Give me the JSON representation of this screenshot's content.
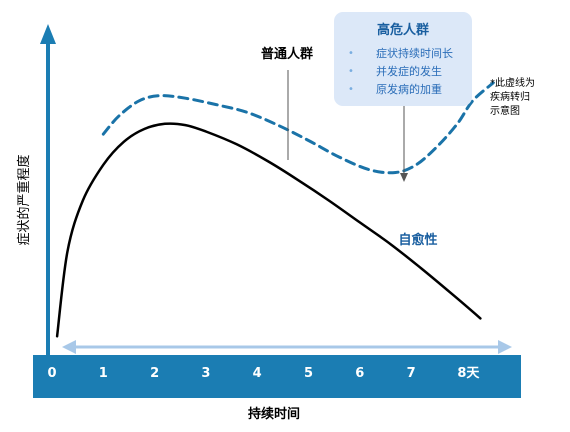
{
  "chart_data": {
    "type": "line",
    "ylabel": "症状的严重程度",
    "xlabel": "持续时间",
    "x_ticks": [
      "0",
      "1",
      "2",
      "3",
      "4",
      "5",
      "6",
      "7",
      "8天"
    ],
    "xlim": [
      0,
      8.6
    ],
    "ylim": [
      0,
      10
    ],
    "series": [
      {
        "name": "普通人群",
        "style": "solid",
        "color": "#000000",
        "x": [
          0.1,
          0.3,
          0.6,
          1.0,
          1.4,
          1.8,
          2.2,
          2.6,
          3.0,
          3.6,
          4.2,
          4.8,
          5.4,
          6.0,
          6.6,
          7.2,
          7.8,
          8.35
        ],
        "y": [
          0.3,
          3.6,
          5.6,
          7.0,
          7.9,
          8.4,
          8.6,
          8.55,
          8.3,
          7.8,
          7.15,
          6.4,
          5.6,
          4.75,
          3.9,
          2.95,
          1.95,
          1.0
        ]
      },
      {
        "name": "疾病转归示意图",
        "style": "dashed",
        "color": "#1a73a8",
        "x": [
          1.0,
          1.3,
          1.7,
          2.1,
          2.6,
          3.2,
          3.8,
          4.4,
          5.0,
          5.6,
          6.2,
          6.7,
          7.1,
          7.5,
          7.9,
          8.2,
          8.6
        ],
        "y": [
          8.2,
          8.9,
          9.5,
          9.7,
          9.6,
          9.35,
          9.05,
          8.55,
          7.95,
          7.3,
          6.8,
          6.7,
          7.0,
          7.7,
          8.6,
          9.5,
          10.2
        ]
      }
    ],
    "annotations": {
      "normal_label": "普通人群",
      "recovery_label": "自愈性",
      "high_risk_title": "高危人群",
      "high_risk_items": [
        "症状持续时间长",
        "并发症的发生",
        "原发病的加重"
      ],
      "dashed_note": [
        "*此虚线为",
        "疾病转归",
        "示意图"
      ]
    },
    "colors": {
      "axis_bar": "#1b7db3",
      "axis_arrow": "#1b7db3",
      "box_fill": "#dce8f8",
      "title_text": "#1a5fa0",
      "bullet_text": "#2a6db8",
      "recovery_text": "#1a5fa0",
      "range_arrow": "#a8c8e8"
    },
    "grid": false,
    "legend": "none"
  }
}
